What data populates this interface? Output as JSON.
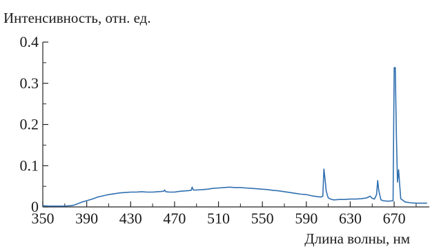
{
  "chart_data": {
    "type": "line",
    "ylabel": "Интенсивность, отн. ед.",
    "xlabel": "Длина волны, нм",
    "xlim": [
      350,
      702
    ],
    "ylim": [
      0,
      0.4
    ],
    "x_ticks": [
      350,
      390,
      430,
      470,
      510,
      550,
      590,
      630,
      670
    ],
    "x_tick_labels": [
      "350",
      "390",
      "430",
      "470",
      "510",
      "550",
      "590",
      "630",
      "670"
    ],
    "y_ticks": [
      0,
      0.1,
      0.2,
      0.3,
      0.4
    ],
    "y_tick_labels": [
      "0",
      "0.1",
      "0.2",
      "0.3",
      "0.4"
    ],
    "grid": false,
    "line_color": "#2f6fb0",
    "series": [
      {
        "x": [
          350,
          355,
          360,
          365,
          370,
          375,
          378,
          382,
          386,
          390,
          395,
          400,
          405,
          410,
          415,
          420,
          425,
          430,
          435,
          440,
          445,
          450,
          455,
          460,
          461,
          462,
          465,
          470,
          475,
          480,
          485,
          486,
          487,
          490,
          495,
          500,
          505,
          510,
          515,
          520,
          525,
          530,
          535,
          540,
          545,
          550,
          555,
          560,
          565,
          570,
          575,
          580,
          585,
          590,
          595,
          600,
          603,
          605,
          606,
          607,
          608,
          609,
          610,
          612,
          615,
          620,
          625,
          630,
          635,
          640,
          645,
          648,
          650,
          652,
          654,
          655,
          656,
          657,
          658,
          660,
          663,
          666,
          668,
          669,
          670,
          671,
          672,
          673,
          674,
          676,
          680,
          685,
          690,
          695,
          700
        ],
        "y": [
          0.003,
          0.002,
          0.002,
          0.002,
          0.002,
          0.003,
          0.004,
          0.008,
          0.012,
          0.015,
          0.019,
          0.024,
          0.027,
          0.03,
          0.032,
          0.034,
          0.035,
          0.036,
          0.036,
          0.037,
          0.036,
          0.036,
          0.037,
          0.038,
          0.041,
          0.037,
          0.036,
          0.036,
          0.038,
          0.039,
          0.04,
          0.048,
          0.041,
          0.041,
          0.042,
          0.043,
          0.045,
          0.046,
          0.047,
          0.048,
          0.047,
          0.047,
          0.046,
          0.045,
          0.044,
          0.043,
          0.042,
          0.04,
          0.039,
          0.037,
          0.035,
          0.033,
          0.031,
          0.03,
          0.027,
          0.025,
          0.024,
          0.026,
          0.092,
          0.068,
          0.04,
          0.03,
          0.022,
          0.019,
          0.017,
          0.018,
          0.018,
          0.019,
          0.019,
          0.02,
          0.022,
          0.026,
          0.021,
          0.019,
          0.03,
          0.064,
          0.04,
          0.028,
          0.017,
          0.015,
          0.014,
          0.014,
          0.015,
          0.015,
          0.338,
          0.338,
          0.175,
          0.06,
          0.09,
          0.02,
          0.012,
          0.01,
          0.009,
          0.009,
          0.009
        ]
      }
    ]
  }
}
